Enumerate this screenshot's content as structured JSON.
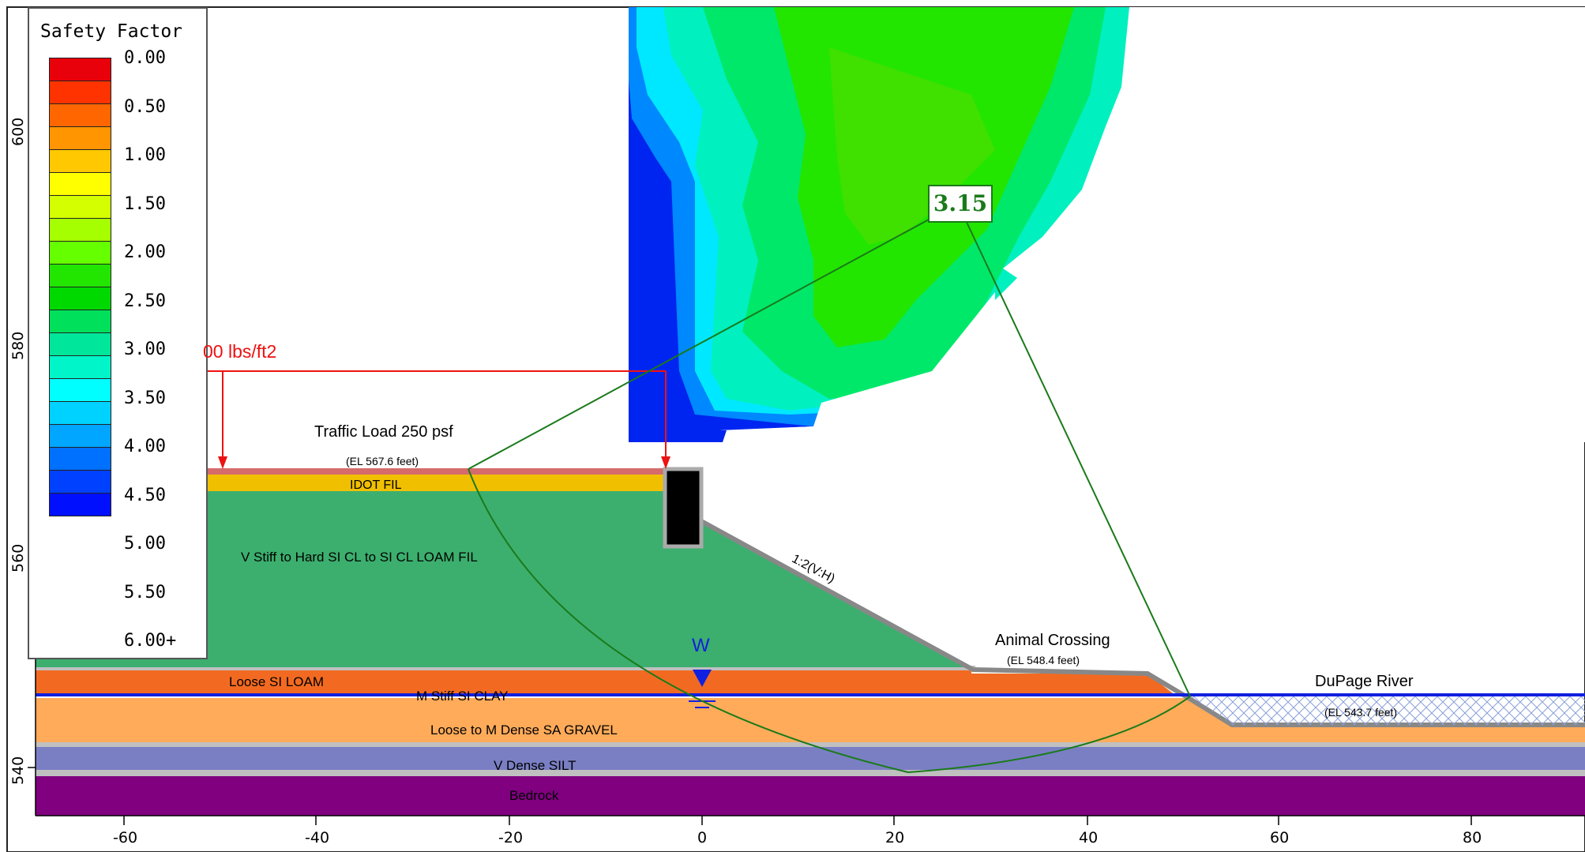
{
  "legend": {
    "title": "Safety Factor",
    "labels": [
      "0.00",
      "0.50",
      "1.00",
      "1.50",
      "2.00",
      "2.50",
      "3.00",
      "3.50",
      "4.00",
      "4.50",
      "5.00",
      "5.50",
      "6.00+"
    ],
    "colors": [
      "#e8000a",
      "#ff3300",
      "#ff6600",
      "#ff9500",
      "#ffc800",
      "#ffff00",
      "#d4ff00",
      "#a6ff00",
      "#66ff00",
      "#22e600",
      "#00d900",
      "#00e05a",
      "#00e69a",
      "#00f5c8",
      "#00ffff",
      "#00d2ff",
      "#00a6ff",
      "#0070ff",
      "#0040ff",
      "#0010ff"
    ]
  },
  "annotations": {
    "load_label": "00 lbs/ft2",
    "traffic_load": "Traffic Load 250 psf",
    "el_top": "(EL 567.6 feet)",
    "idot_fill": "IDOT  FIL",
    "vstiff": "V Stiff  to Hard SI CL to SI CL LOAM FIL",
    "slope": "1:2(V:H)",
    "animal_crossing": "Animal Crossing",
    "el_animal": "(EL 548.4 feet)",
    "dupage_river": "DuPage River",
    "el_river": "(EL 543.7 feet)",
    "loose_loam": "Loose SI LOAM",
    "m_stiff_clay": "M Stiff SI CLAY",
    "gravel": "Loose to M Dense SA GRAVEL",
    "dense_silt": "V Dense  SILT",
    "bedrock": "Bedrock",
    "water_marker": "W",
    "min_fs": "3.15"
  },
  "axes": {
    "x_ticks": [
      "-60",
      "-40",
      "-20",
      "0",
      "20",
      "40",
      "60",
      "80"
    ],
    "y_ticks": [
      "600",
      "580",
      "560",
      "540"
    ]
  },
  "colors": {
    "vstiff_fill": "#3caf6e",
    "idot_fill": "#f0c000",
    "loose_loam": "#f26a21",
    "gravel": "#ffab5a",
    "silt": "#7a7fc4",
    "bedrock": "#800080",
    "water_line": "#1020e0",
    "load": "#ee1111",
    "slip_circle": "#1a7a1a"
  }
}
